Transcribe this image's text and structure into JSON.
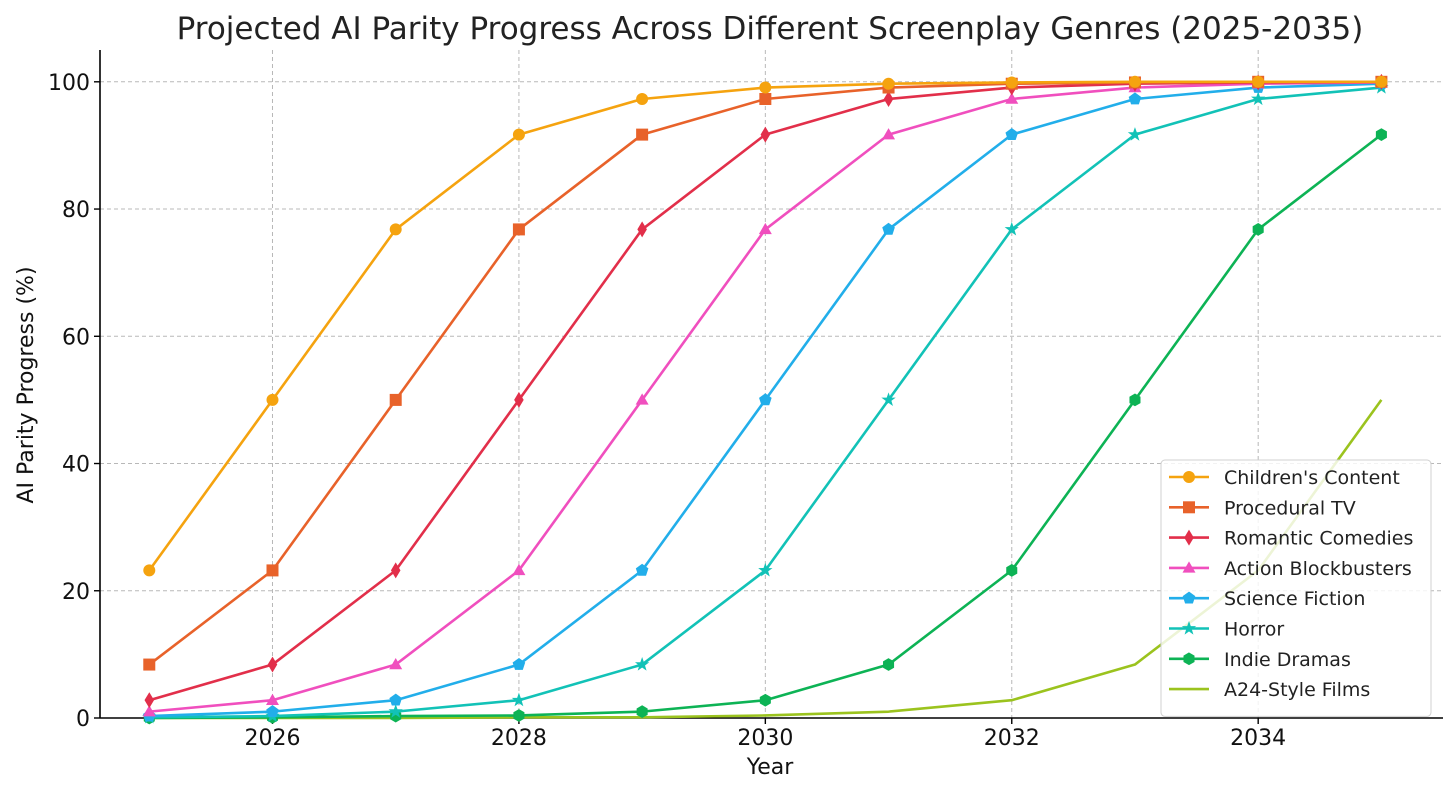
{
  "chart_data": {
    "type": "line",
    "title": "Projected AI Parity Progress Across Different Screenplay Genres (2025-2035)",
    "xlabel": "Year",
    "ylabel": "AI Parity Progress (%)",
    "xlim": [
      2024.6,
      2035.5
    ],
    "ylim": [
      0,
      105
    ],
    "x_ticks": [
      2026,
      2028,
      2030,
      2032,
      2034
    ],
    "y_ticks": [
      0,
      20,
      40,
      60,
      80,
      100
    ],
    "grid": true,
    "legend_position": "lower-right",
    "x": [
      2025,
      2026,
      2027,
      2028,
      2029,
      2030,
      2031,
      2032,
      2033,
      2034,
      2035
    ],
    "series": [
      {
        "name": "Children's Content",
        "color": "#F5A30F",
        "marker": "circle",
        "values": [
          23.2,
          50.0,
          76.8,
          91.7,
          97.3,
          99.1,
          99.7,
          99.9,
          100.0,
          100.0,
          100.0
        ]
      },
      {
        "name": "Procedural TV",
        "color": "#E8622A",
        "marker": "square",
        "values": [
          8.4,
          23.2,
          50.0,
          76.8,
          91.7,
          97.3,
          99.1,
          99.7,
          99.9,
          100.0,
          100.0
        ]
      },
      {
        "name": "Romantic Comedies",
        "color": "#E22F4A",
        "marker": "diamond",
        "values": [
          2.8,
          8.4,
          23.2,
          50.0,
          76.8,
          91.7,
          97.3,
          99.1,
          99.7,
          99.9,
          100.0
        ]
      },
      {
        "name": "Action Blockbusters",
        "color": "#F04FBE",
        "marker": "triangle",
        "values": [
          1.0,
          2.8,
          8.4,
          23.2,
          50.0,
          76.8,
          91.7,
          97.3,
          99.1,
          99.7,
          99.9
        ]
      },
      {
        "name": "Science Fiction",
        "color": "#22AEEA",
        "marker": "pentagon",
        "values": [
          0.3,
          1.0,
          2.8,
          8.4,
          23.2,
          50.0,
          76.8,
          91.7,
          97.3,
          99.1,
          99.7
        ]
      },
      {
        "name": "Horror",
        "color": "#12C2B7",
        "marker": "star",
        "values": [
          0.1,
          0.3,
          1.0,
          2.8,
          8.4,
          23.2,
          50.0,
          76.8,
          91.7,
          97.3,
          99.1
        ]
      },
      {
        "name": "Indie Dramas",
        "color": "#0DB355",
        "marker": "hexagon",
        "values": [
          0.0,
          0.1,
          0.3,
          0.4,
          1.0,
          2.8,
          8.4,
          23.2,
          50.0,
          76.8,
          91.7
        ]
      },
      {
        "name": "A24-Style Films",
        "color": "#9BC31E",
        "marker": "none",
        "values": [
          0.0,
          0.0,
          0.0,
          0.1,
          0.1,
          0.4,
          1.0,
          2.8,
          8.4,
          23.2,
          50.0
        ]
      }
    ]
  }
}
